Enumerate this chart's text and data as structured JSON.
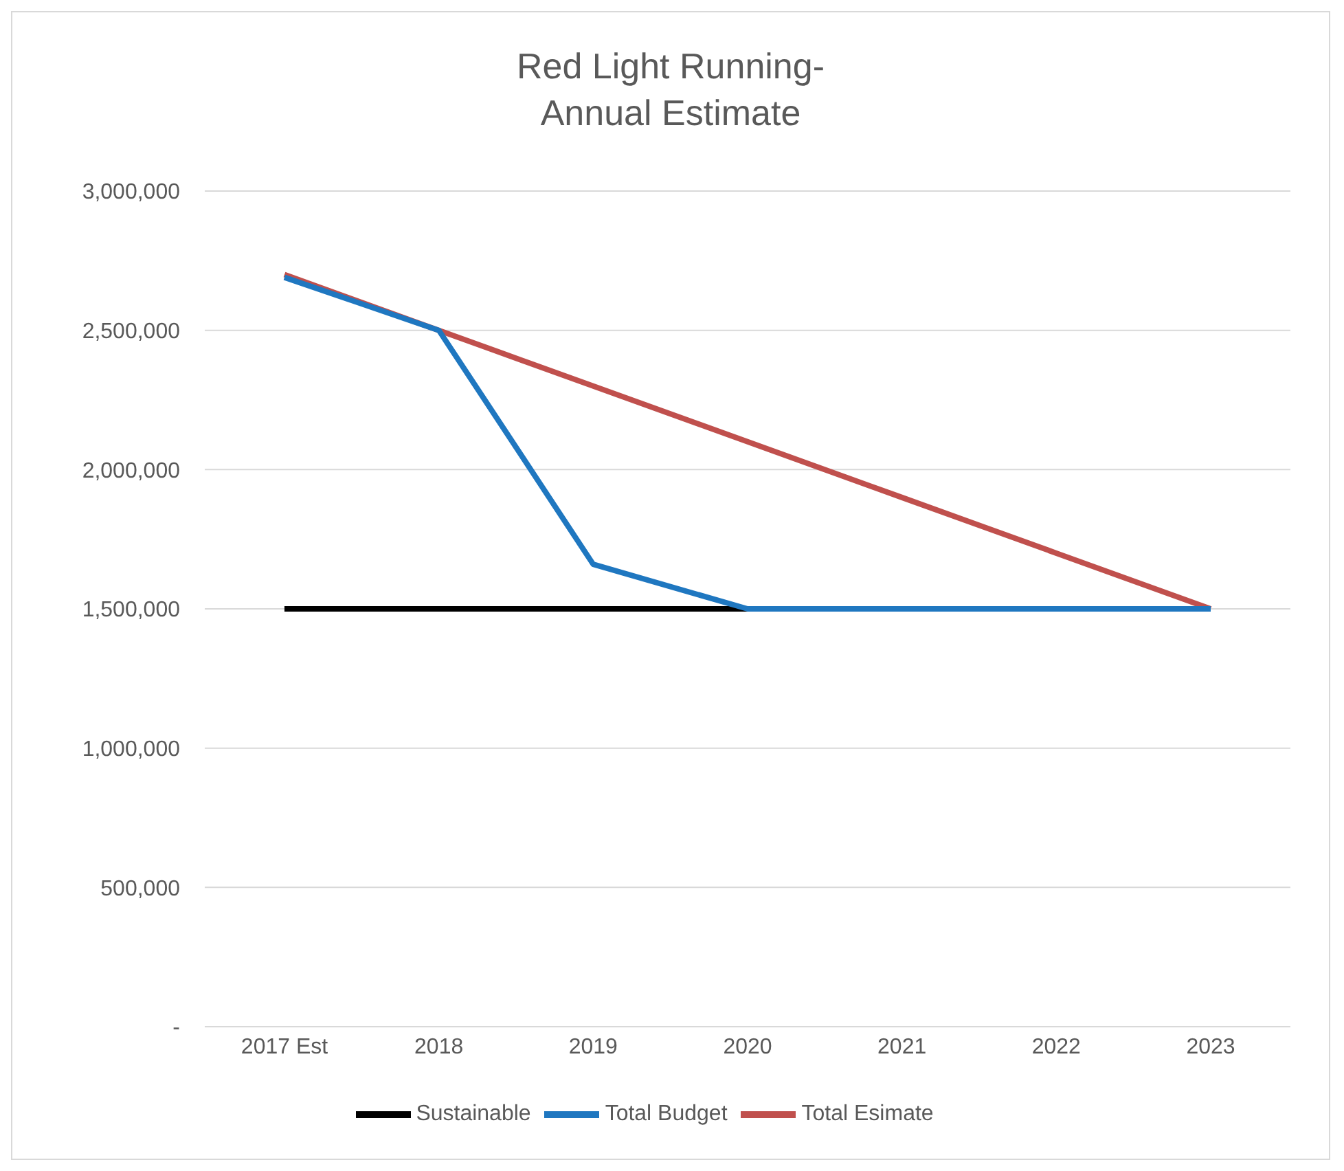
{
  "chart_data": {
    "type": "line",
    "title": "Red Light Running-\nAnnual Estimate",
    "categories": [
      "2017 Est",
      "2018",
      "2019",
      "2020",
      "2021",
      "2022",
      "2023"
    ],
    "series": [
      {
        "name": "Sustainable",
        "color": "#000000",
        "values": [
          1500000,
          1500000,
          1500000,
          1500000,
          null,
          null,
          null
        ]
      },
      {
        "name": "Total Esimate",
        "color": "#c0504d",
        "values": [
          2700000,
          2500000,
          2300000,
          2100000,
          1900000,
          1700000,
          1500000
        ]
      },
      {
        "name": "Total Budget",
        "color": "#1f77c0",
        "values": [
          2690000,
          2500000,
          1660000,
          1500000,
          1500000,
          1500000,
          1500000
        ]
      }
    ],
    "ylim": [
      0,
      3000000
    ],
    "yticks": [
      {
        "value": 0,
        "label": "-"
      },
      {
        "value": 500000,
        "label": "500,000"
      },
      {
        "value": 1000000,
        "label": "1,000,000"
      },
      {
        "value": 1500000,
        "label": "1,500,000"
      },
      {
        "value": 2000000,
        "label": "2,000,000"
      },
      {
        "value": 2500000,
        "label": "2,500,000"
      },
      {
        "value": 3000000,
        "label": "3,000,000"
      }
    ],
    "grid": "y",
    "legend": "bottom",
    "marker": "none",
    "line_style": "solid"
  }
}
